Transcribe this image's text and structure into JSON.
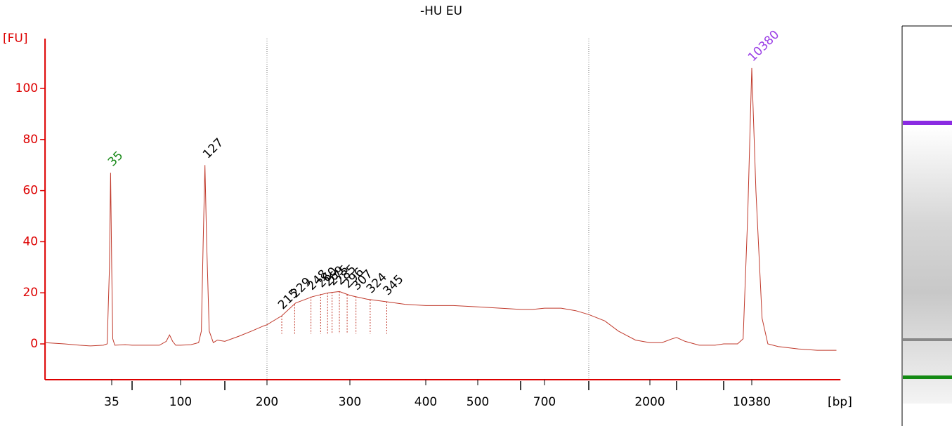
{
  "chart_data": {
    "type": "line",
    "title": "-HU EU",
    "y_label": "[FU]",
    "x_label": "[bp]",
    "axis_color": "#dd0000",
    "ylim": [
      -14,
      119.5
    ],
    "yticks": [
      0,
      20,
      40,
      60,
      80,
      100
    ],
    "xlim": [
      6,
      36000
    ],
    "xticks": [
      35,
      100,
      200,
      300,
      400,
      500,
      700,
      2000,
      10380
    ],
    "x_minor_ticks": [
      60,
      150,
      600,
      1000,
      3000,
      7000
    ],
    "region_lines": [
      200,
      1000
    ],
    "x": [
      6,
      10,
      15,
      20,
      28,
      31,
      33,
      34,
      35,
      36,
      38,
      50,
      60,
      70,
      80,
      86,
      89,
      92,
      95,
      100,
      110,
      118,
      121,
      123,
      125,
      127,
      130,
      135,
      140,
      150,
      165,
      180,
      195,
      200,
      215,
      230,
      250,
      270,
      285,
      300,
      320,
      345,
      370,
      400,
      450,
      500,
      550,
      600,
      650,
      700,
      800,
      900,
      1000,
      1200,
      1400,
      1700,
      2000,
      2400,
      2800,
      3000,
      3500,
      4500,
      6000,
      7000,
      8500,
      9200,
      9800,
      10380,
      11000,
      12000,
      13000,
      15000,
      20000,
      26000,
      34000
    ],
    "series": [
      {
        "color": "#c0392b",
        "values": [
          0.5,
          0,
          -0.5,
          -0.8,
          -0.5,
          0,
          30,
          67,
          30,
          2,
          -0.5,
          -0.3,
          -0.5,
          -0.5,
          -0.5,
          1,
          3.5,
          1,
          -0.5,
          -0.5,
          -0.3,
          0.5,
          5,
          40,
          70,
          40,
          5,
          0.5,
          1.5,
          1,
          3,
          5,
          7,
          7.5,
          11,
          16,
          18.5,
          20,
          20.5,
          19,
          17.5,
          16.5,
          15.5,
          15,
          15,
          14.5,
          14,
          13.5,
          13.5,
          14,
          14,
          13,
          11.5,
          9,
          5,
          1.5,
          0.5,
          0.5,
          2,
          2.5,
          1,
          -0.5,
          -0.5,
          0,
          0,
          2,
          50,
          108,
          60,
          10,
          0,
          -1,
          -2,
          -2.5,
          -2.5
        ]
      }
    ],
    "peaks": [
      {
        "bp": 35,
        "fu": 67,
        "color": "#1a8a1a"
      },
      {
        "bp": 127,
        "fu": 70,
        "color": "#000000"
      },
      {
        "bp": 10380,
        "fu": 108,
        "color": "#9b3fe6"
      },
      {
        "bp": 215,
        "fu": 11,
        "color": "#000000"
      },
      {
        "bp": 229,
        "fu": 15.5,
        "color": "#000000"
      },
      {
        "bp": 248,
        "fu": 18.5,
        "color": "#000000"
      },
      {
        "bp": 260,
        "fu": 19.5,
        "color": "#000000"
      },
      {
        "bp": 269,
        "fu": 20,
        "color": "#000000"
      },
      {
        "bp": 275,
        "fu": 20.3,
        "color": "#000000"
      },
      {
        "bp": 285,
        "fu": 20.5,
        "color": "#000000"
      },
      {
        "bp": 296,
        "fu": 19.3,
        "color": "#000000"
      },
      {
        "bp": 307,
        "fu": 18.5,
        "color": "#000000"
      },
      {
        "bp": 324,
        "fu": 17.3,
        "color": "#000000"
      },
      {
        "bp": 345,
        "fu": 16.5,
        "color": "#000000"
      }
    ]
  }
}
